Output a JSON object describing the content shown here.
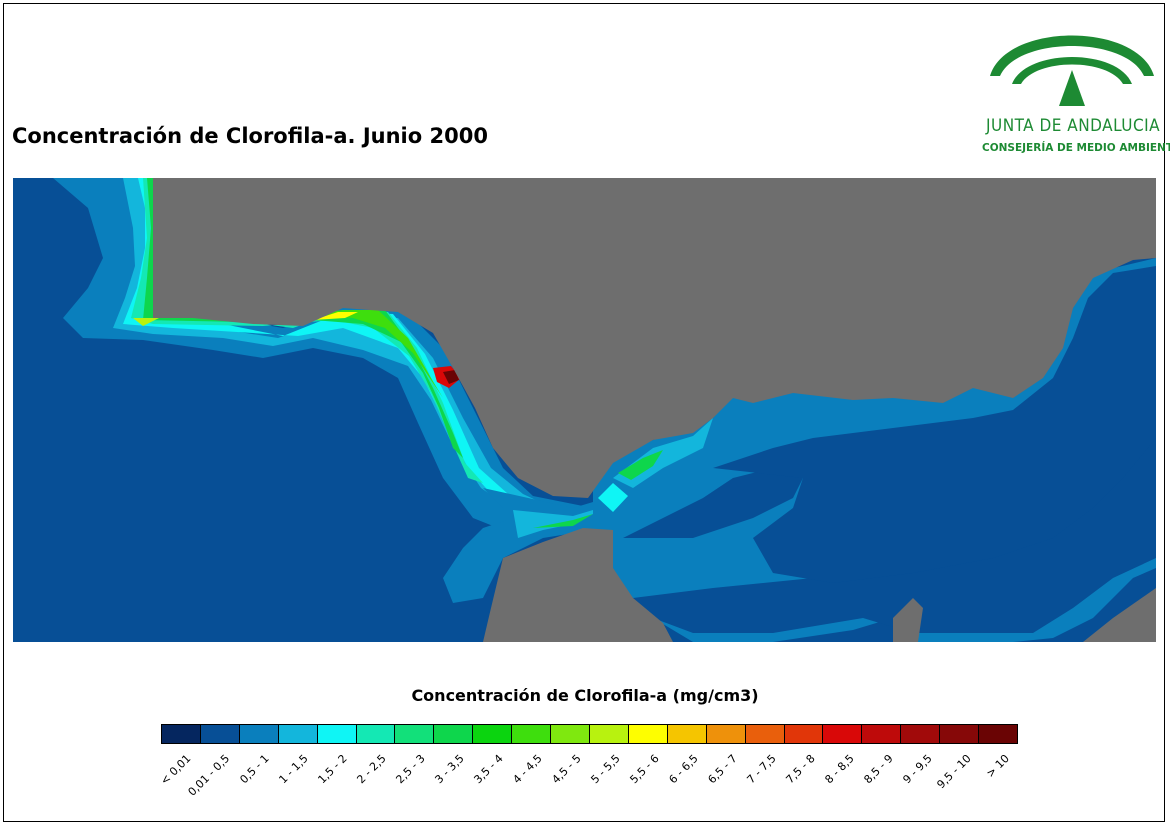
{
  "title": "Concentración de Clorofila-a. Junio 2000",
  "logo": {
    "name": "JUNTA DE ANDALUCIA",
    "subtitle": "CONSEJERÍA DE MEDIO AMBIENTE",
    "color": "#1d8a33"
  },
  "map_colors": {
    "land": "#6e6e6e",
    "open_sea": "#074f96",
    "no_data_border": "#000000"
  },
  "legend": {
    "title": "Concentración de Clorofila-a (mg/cm3)",
    "classes": [
      {
        "label": "< 0,01",
        "color": "#05265f"
      },
      {
        "label": "0,01 - 0,5",
        "color": "#074f96"
      },
      {
        "label": "0,5 - 1",
        "color": "#0a7fbd"
      },
      {
        "label": "1 - 1,5",
        "color": "#13b6dc"
      },
      {
        "label": "1,5 - 2",
        "color": "#0ff5f5"
      },
      {
        "label": "2 - 2,5",
        "color": "#14e8b4"
      },
      {
        "label": "2,5 - 3",
        "color": "#12e07a"
      },
      {
        "label": "3 - 3,5",
        "color": "#0ed64c"
      },
      {
        "label": "3,5 - 4",
        "color": "#0bd40f"
      },
      {
        "label": "4 - 4,5",
        "color": "#3ede0d"
      },
      {
        "label": "4,5 - 5",
        "color": "#7fe80f"
      },
      {
        "label": "5 - 5,5",
        "color": "#b8f20f"
      },
      {
        "label": "5,5 - 6",
        "color": "#fefe00"
      },
      {
        "label": "6 - 6,5",
        "color": "#f5c500"
      },
      {
        "label": "6,5 - 7",
        "color": "#ee910b"
      },
      {
        "label": "7 - 7,5",
        "color": "#e95f0c"
      },
      {
        "label": "7,5 - 8",
        "color": "#e13609"
      },
      {
        "label": "8 - 8,5",
        "color": "#d90808"
      },
      {
        "label": "8,5 - 9",
        "color": "#be0a0a"
      },
      {
        "label": "9 - 9,5",
        "color": "#a10a0a"
      },
      {
        "label": "9,5 - 10",
        "color": "#860808"
      },
      {
        "label": "> 10",
        "color": "#6a0404"
      }
    ]
  }
}
